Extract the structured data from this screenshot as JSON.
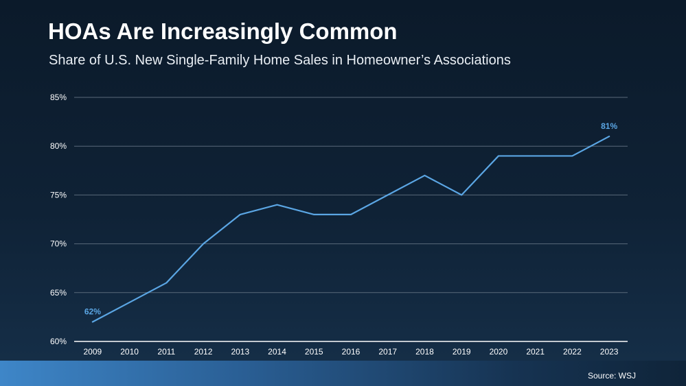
{
  "header": {
    "title": "HOAs Are Increasingly Common",
    "subtitle": "Share of U.S. New Single-Family Home Sales in Homeowner’s Associations"
  },
  "footer": {
    "source": "Source: WSJ"
  },
  "colors": {
    "line": "#5ba6e4",
    "gridline": "#5a6a7a",
    "axis": "#ffffff",
    "label": "#ffffff"
  },
  "chart_data": {
    "type": "line",
    "title": "HOAs Are Increasingly Common",
    "subtitle": "Share of U.S. New Single-Family Home Sales in Homeowner’s Associations",
    "xlabel": "",
    "ylabel": "",
    "categories": [
      "2009",
      "2010",
      "2011",
      "2012",
      "2013",
      "2014",
      "2015",
      "2016",
      "2017",
      "2018",
      "2019",
      "2020",
      "2021",
      "2022",
      "2023"
    ],
    "series": [
      {
        "values": [
          62,
          64,
          66,
          70,
          73,
          74,
          73,
          73,
          75,
          77,
          75,
          79,
          79,
          79,
          81
        ]
      }
    ],
    "ylim": [
      60,
      85
    ],
    "yticks": [
      "60%",
      "65%",
      "70%",
      "75%",
      "80%",
      "85%"
    ],
    "data_labels": [
      {
        "category": "2009",
        "text": "62%"
      },
      {
        "category": "2023",
        "text": "81%"
      }
    ],
    "grid": true,
    "legend": "none"
  }
}
